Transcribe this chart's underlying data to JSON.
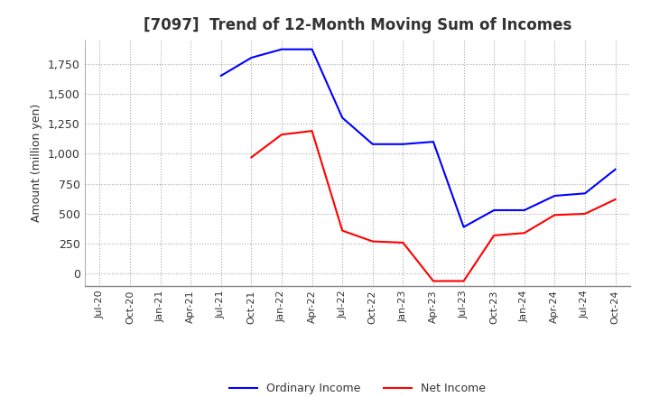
{
  "title": "[7097]  Trend of 12-Month Moving Sum of Incomes",
  "ylabel": "Amount (million yen)",
  "background_color": "#ffffff",
  "grid_color": "#aaaaaa",
  "plot_bg_color": "#ffffff",
  "ordinary_income_color": "#0000ff",
  "net_income_color": "#ff0000",
  "ylim": [
    -100,
    1950
  ],
  "yticks": [
    0,
    250,
    500,
    750,
    1000,
    1250,
    1500,
    1750
  ],
  "ordinary_income": [
    null,
    null,
    null,
    null,
    1650,
    1800,
    1870,
    1870,
    1300,
    1080,
    1080,
    1100,
    390,
    530,
    530,
    650,
    670,
    870
  ],
  "net_income": [
    null,
    null,
    null,
    null,
    null,
    970,
    1160,
    1190,
    360,
    270,
    260,
    -60,
    -60,
    320,
    340,
    490,
    500,
    620
  ],
  "xtick_labels": [
    "Jul-20",
    "Oct-20",
    "Jan-21",
    "Apr-21",
    "Jul-21",
    "Oct-21",
    "Jan-22",
    "Apr-22",
    "Jul-22",
    "Oct-22",
    "Jan-23",
    "Apr-23",
    "Jul-23",
    "Oct-23",
    "Jan-24",
    "Apr-24",
    "Jul-24",
    "Oct-24"
  ],
  "legend_labels": [
    "Ordinary Income",
    "Net Income"
  ]
}
